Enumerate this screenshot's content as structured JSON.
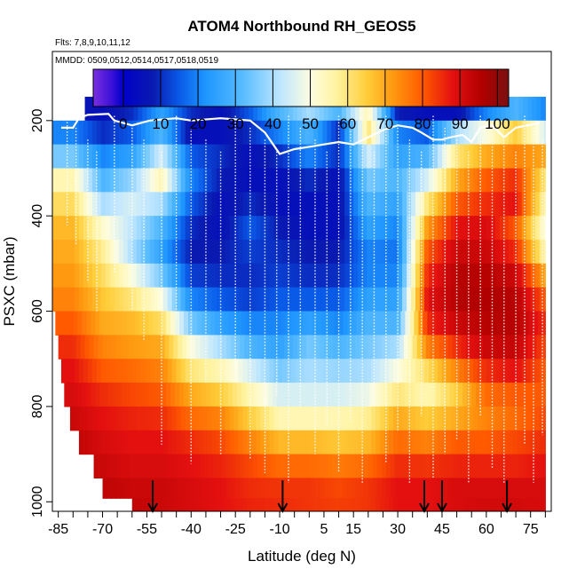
{
  "chart_data": {
    "type": "heatmap",
    "title": "ATOM4 Northbound RH_GEOS5",
    "flights_note": "Flts: 7,8,9,10,11,12",
    "dates_note": "MMDD: 0509,0512,0514,0517,0518,0519",
    "xlabel": "Latitude (deg N)",
    "ylabel": "PSXC (mbar)",
    "xlim": [
      -87,
      82
    ],
    "ylim": [
      1020,
      55
    ],
    "x_ticks": [
      -85,
      -70,
      -55,
      -40,
      -25,
      -10,
      5,
      15,
      30,
      45,
      60,
      75
    ],
    "x_minor_ticks": [
      -80,
      -75,
      -65,
      -60,
      -50,
      -45,
      -35,
      -30,
      -20,
      -15,
      -5,
      0,
      10,
      20,
      25,
      35,
      40,
      50,
      55,
      65,
      70,
      80
    ],
    "y_ticks": [
      200,
      400,
      600,
      800,
      1000
    ],
    "colorbar": {
      "range": [
        -8,
        103
      ],
      "ticks": [
        0,
        10,
        20,
        30,
        40,
        50,
        60,
        70,
        80,
        90,
        100
      ],
      "stops": [
        {
          "v": -8,
          "color": "#7b2fe0"
        },
        {
          "v": -3,
          "color": "#3a10d8"
        },
        {
          "v": 0,
          "color": "#0000c8"
        },
        {
          "v": 8,
          "color": "#0a1ab0"
        },
        {
          "v": 15,
          "color": "#0a5ae8"
        },
        {
          "v": 22,
          "color": "#1e96ff"
        },
        {
          "v": 32,
          "color": "#58bcff"
        },
        {
          "v": 42,
          "color": "#bfe6ff"
        },
        {
          "v": 50,
          "color": "#fdfde0"
        },
        {
          "v": 57,
          "color": "#fff3a0"
        },
        {
          "v": 65,
          "color": "#ffce3a"
        },
        {
          "v": 72,
          "color": "#ff9a10"
        },
        {
          "v": 80,
          "color": "#ff5a00"
        },
        {
          "v": 88,
          "color": "#e41010"
        },
        {
          "v": 96,
          "color": "#b00000"
        },
        {
          "v": 103,
          "color": "#7a1010"
        }
      ]
    },
    "levels_mbar": [
      175,
      225,
      275,
      325,
      375,
      425,
      475,
      525,
      575,
      625,
      675,
      725,
      775,
      825,
      875,
      925,
      975,
      1010
    ],
    "level_min_lat": [
      -76,
      -87,
      -87,
      -87,
      -87,
      -87,
      -87,
      -87,
      -87,
      -86,
      -85,
      -84,
      -83,
      -81,
      -78,
      -73,
      -70,
      -60
    ],
    "lat_max": 80,
    "profile_lats": [
      -80,
      -70,
      -60,
      -50,
      -40,
      -30,
      -20,
      -10,
      0,
      10,
      20,
      30,
      40,
      50,
      60,
      70,
      80
    ],
    "rh_profiles": [
      [
        8,
        20,
        35,
        55,
        62,
        68,
        70,
        72,
        75,
        80,
        85,
        88,
        90,
        92,
        94,
        95,
        96,
        96
      ],
      [
        5,
        10,
        20,
        30,
        40,
        52,
        58,
        62,
        66,
        70,
        75,
        80,
        85,
        88,
        90,
        92,
        94,
        95
      ],
      [
        10,
        15,
        25,
        38,
        45,
        42,
        40,
        50,
        60,
        68,
        72,
        78,
        82,
        86,
        88,
        90,
        92,
        93
      ],
      [
        25,
        30,
        45,
        55,
        40,
        30,
        25,
        35,
        50,
        62,
        70,
        75,
        80,
        85,
        88,
        90,
        92,
        92
      ],
      [
        10,
        5,
        15,
        20,
        15,
        10,
        8,
        12,
        20,
        35,
        50,
        60,
        70,
        78,
        85,
        88,
        90,
        90
      ],
      [
        5,
        5,
        10,
        8,
        5,
        5,
        8,
        10,
        15,
        25,
        40,
        55,
        65,
        75,
        82,
        86,
        88,
        88
      ],
      [
        15,
        10,
        5,
        5,
        10,
        15,
        12,
        10,
        12,
        20,
        30,
        45,
        55,
        65,
        75,
        82,
        85,
        86
      ],
      [
        30,
        20,
        10,
        5,
        5,
        8,
        10,
        12,
        15,
        20,
        25,
        35,
        45,
        55,
        68,
        78,
        84,
        85
      ],
      [
        40,
        30,
        20,
        10,
        5,
        5,
        8,
        10,
        15,
        25,
        35,
        40,
        45,
        55,
        68,
        78,
        84,
        84
      ],
      [
        30,
        10,
        10,
        5,
        5,
        5,
        8,
        10,
        15,
        20,
        30,
        38,
        45,
        55,
        66,
        76,
        82,
        83
      ],
      [
        55,
        60,
        45,
        35,
        30,
        25,
        20,
        20,
        25,
        30,
        35,
        40,
        48,
        58,
        68,
        78,
        84,
        84
      ],
      [
        8,
        20,
        25,
        30,
        25,
        20,
        18,
        20,
        25,
        30,
        40,
        50,
        60,
        70,
        78,
        85,
        88,
        88
      ],
      [
        5,
        15,
        30,
        45,
        60,
        72,
        80,
        85,
        88,
        85,
        75,
        62,
        55,
        65,
        75,
        84,
        88,
        88
      ],
      [
        5,
        40,
        60,
        70,
        80,
        88,
        92,
        95,
        95,
        92,
        85,
        75,
        65,
        70,
        80,
        86,
        90,
        90
      ],
      [
        20,
        50,
        70,
        80,
        85,
        90,
        92,
        95,
        96,
        95,
        92,
        85,
        78,
        75,
        80,
        86,
        90,
        91
      ],
      [
        30,
        65,
        75,
        85,
        88,
        80,
        85,
        92,
        95,
        95,
        93,
        88,
        80,
        78,
        82,
        86,
        90,
        91
      ],
      [
        20,
        45,
        70,
        60,
        55,
        50,
        55,
        70,
        80,
        85,
        82,
        80,
        80,
        82,
        85,
        88,
        90,
        90
      ]
    ],
    "tropopause_line": [
      [
        -84,
        215
      ],
      [
        -80,
        215
      ],
      [
        -78,
        195
      ],
      [
        -75,
        188
      ],
      [
        -68,
        186
      ],
      [
        -66,
        200
      ],
      [
        -60,
        210
      ],
      [
        -54,
        200
      ],
      [
        -45,
        195
      ],
      [
        -40,
        200
      ],
      [
        -30,
        195
      ],
      [
        -20,
        200
      ],
      [
        -15,
        225
      ],
      [
        -10,
        270
      ],
      [
        -5,
        260
      ],
      [
        0,
        255
      ],
      [
        5,
        250
      ],
      [
        10,
        245
      ],
      [
        15,
        250
      ],
      [
        20,
        235
      ],
      [
        25,
        220
      ],
      [
        30,
        210
      ],
      [
        35,
        215
      ],
      [
        38,
        225
      ],
      [
        42,
        240
      ],
      [
        45,
        240
      ],
      [
        48,
        235
      ],
      [
        52,
        230
      ],
      [
        55,
        245
      ],
      [
        58,
        215
      ],
      [
        62,
        210
      ],
      [
        66,
        235
      ],
      [
        70,
        215
      ],
      [
        74,
        210
      ],
      [
        78,
        205
      ]
    ],
    "profile_dotted_lines": [
      [
        -82,
        420
      ],
      [
        -79,
        460
      ],
      [
        -75,
        540
      ],
      [
        -72,
        600
      ],
      [
        -66,
        520
      ],
      [
        -60,
        600
      ],
      [
        -56,
        660
      ],
      [
        -50,
        880
      ],
      [
        -45,
        620
      ],
      [
        -40,
        920
      ],
      [
        -35,
        750
      ],
      [
        -30,
        900
      ],
      [
        -25,
        730
      ],
      [
        -20,
        910
      ],
      [
        -15,
        940
      ],
      [
        -11,
        780
      ],
      [
        -7,
        960
      ],
      [
        -3,
        800
      ],
      [
        2,
        900
      ],
      [
        6,
        840
      ],
      [
        10,
        940
      ],
      [
        14,
        830
      ],
      [
        18,
        960
      ],
      [
        22,
        800
      ],
      [
        26,
        920
      ],
      [
        30,
        850
      ],
      [
        34,
        960
      ],
      [
        38,
        820
      ],
      [
        42,
        950
      ],
      [
        46,
        900
      ],
      [
        50,
        870
      ],
      [
        54,
        960
      ],
      [
        58,
        820
      ],
      [
        62,
        930
      ],
      [
        66,
        960
      ],
      [
        70,
        850
      ],
      [
        73,
        880
      ],
      [
        76,
        960
      ],
      [
        79,
        860
      ]
    ],
    "flight_arrows_lat": [
      -53,
      -9,
      39,
      45,
      67
    ],
    "flight_arrow_top_mbar": 955
  }
}
